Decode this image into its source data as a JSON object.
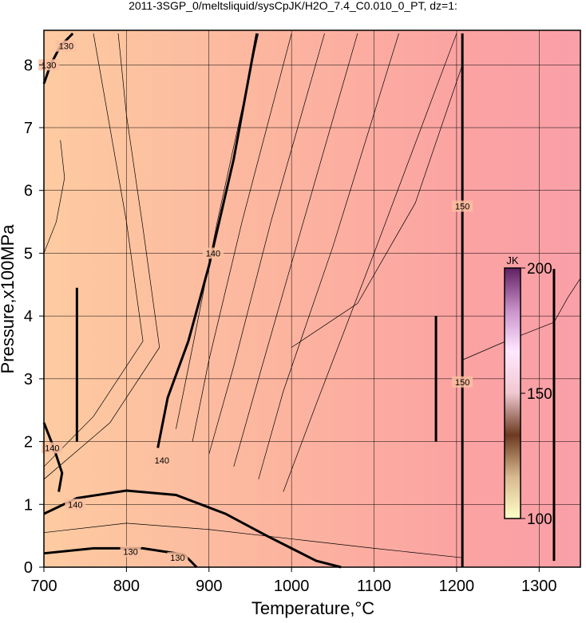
{
  "chart_data": {
    "type": "contour",
    "title": "2011-3SGP_0/meltsliquid/sysCpJK/H2O_7.4_C0.010_0_PT, dz=1:",
    "xlabel": "Temperature,°C",
    "ylabel": "Pressure,x100MPa",
    "xlim": [
      700,
      1350
    ],
    "ylim": [
      0,
      8.55
    ],
    "xticks": [
      700,
      800,
      900,
      1000,
      1100,
      1200,
      1300
    ],
    "yticks": [
      0,
      1,
      2,
      3,
      4,
      5,
      6,
      7,
      8
    ],
    "grid": true,
    "contours": [
      {
        "x": [
          838,
          850,
          875,
          900,
          930,
          958
        ],
        "y": [
          1.9,
          2.7,
          3.6,
          4.8,
          6.5,
          8.5
        ]
      },
      {
        "x": [
          700,
          740,
          800,
          860,
          920,
          970,
          1000,
          1030,
          1060
        ],
        "y": [
          0.85,
          1.1,
          1.22,
          1.15,
          0.85,
          0.5,
          0.3,
          0.1,
          0
        ]
      },
      {
        "x": [
          700,
          760,
          820,
          870,
          885
        ],
        "y": [
          0.22,
          0.3,
          0.3,
          0.2,
          0
        ]
      },
      {
        "x": [
          700,
          708,
          720,
          735
        ],
        "y": [
          7.7,
          8.0,
          8.3,
          8.5
        ]
      },
      {
        "x": [
          700,
          712,
          722,
          718
        ],
        "y": [
          2.3,
          1.9,
          1.5,
          1.2
        ]
      },
      {
        "x": [
          1207,
          1207
        ],
        "y": [
          0,
          8.5
        ]
      },
      {
        "x": [
          740,
          740
        ],
        "y": [
          2.0,
          4.45
        ]
      },
      {
        "x": [
          1175,
          1175
        ],
        "y": [
          2.0,
          4.0
        ]
      },
      {
        "x": [
          1318,
          1318
        ],
        "y": [
          0.1,
          4.75
        ]
      }
    ],
    "thin_contours": [
      {
        "x": [
          860,
          880,
          910,
          960
        ],
        "y": [
          2.2,
          3.5,
          5.5,
          8.5
        ]
      },
      {
        "x": [
          880,
          900,
          940,
          1000
        ],
        "y": [
          2.0,
          3.3,
          5.5,
          8.5
        ]
      },
      {
        "x": [
          900,
          930,
          975,
          1040
        ],
        "y": [
          1.8,
          3.2,
          5.5,
          8.5
        ]
      },
      {
        "x": [
          930,
          960,
          1010,
          1080
        ],
        "y": [
          1.6,
          3.0,
          5.3,
          8.5
        ]
      },
      {
        "x": [
          960,
          990,
          1050,
          1130
        ],
        "y": [
          1.4,
          2.8,
          5.1,
          8.5
        ]
      },
      {
        "x": [
          990,
          1030,
          1100,
          1200
        ],
        "y": [
          1.2,
          2.6,
          5.0,
          8.5
        ]
      },
      {
        "x": [
          700,
          760,
          820,
          800,
          780,
          760
        ],
        "y": [
          1.6,
          2.4,
          3.6,
          5.5,
          7.0,
          8.5
        ]
      },
      {
        "x": [
          700,
          780,
          840,
          820,
          800,
          790
        ],
        "y": [
          1.4,
          2.3,
          3.5,
          5.4,
          7.2,
          8.5
        ]
      },
      {
        "x": [
          700,
          800,
          900,
          1000,
          1100,
          1207
        ],
        "y": [
          0.55,
          0.7,
          0.6,
          0.45,
          0.3,
          0.15
        ]
      },
      {
        "x": [
          1000,
          1080,
          1150,
          1207
        ],
        "y": [
          3.5,
          4.2,
          5.8,
          8.0
        ]
      },
      {
        "x": [
          1207,
          1260,
          1318
        ],
        "y": [
          3.3,
          3.6,
          3.9
        ]
      },
      {
        "x": [
          1318,
          1335,
          1350
        ],
        "y": [
          3.9,
          4.3,
          4.6
        ]
      },
      {
        "x": [
          700,
          715,
          725,
          720
        ],
        "y": [
          5.0,
          5.5,
          6.2,
          6.8
        ]
      }
    ],
    "contour_labels": [
      {
        "x": 706,
        "y": 8.0,
        "level": 130
      },
      {
        "x": 727,
        "y": 8.3,
        "level": 130
      },
      {
        "x": 905,
        "y": 5.0,
        "level": 140
      },
      {
        "x": 843,
        "y": 1.7,
        "level": 140
      },
      {
        "x": 710,
        "y": 1.9,
        "level": 140
      },
      {
        "x": 738,
        "y": 1.0,
        "level": 140
      },
      {
        "x": 805,
        "y": 0.25,
        "level": 130
      },
      {
        "x": 862,
        "y": 0.15,
        "level": 130
      },
      {
        "x": 1207,
        "y": 5.75,
        "level": 150
      },
      {
        "x": 1207,
        "y": 2.95,
        "level": 150
      }
    ],
    "colorbar": {
      "label": "JK",
      "lim": [
        100,
        200
      ],
      "ticks": [
        100,
        150,
        200
      ],
      "colors": [
        "#ffffc8",
        "#d8b890",
        "#6b3a20",
        "#f0c8d0",
        "#ffe8ff",
        "#c890c8",
        "#602060"
      ]
    }
  }
}
